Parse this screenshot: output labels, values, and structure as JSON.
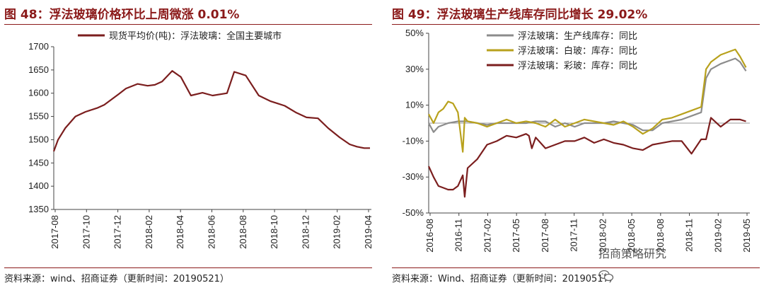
{
  "left": {
    "title": "图 48：浮法玻璃价格环比上周微涨 0.01%",
    "source": "资料来源：wind、招商证券（更新时间：20190521）"
  },
  "right": {
    "title": "图 49：浮法玻璃生产线库存同比增长 29.02%",
    "source": "资料来源：Wind、招商证券（更新时间：20190517）"
  },
  "watermark": {
    "text": "招商策略研究",
    "icon": "wechat-icon"
  },
  "chart_data": [
    {
      "type": "line",
      "title": "图 48：浮法玻璃价格环比上周微涨 0.01%",
      "xlabel": "",
      "ylabel": "",
      "ylim": [
        1350,
        1700
      ],
      "yticks": [
        "1350",
        "1400",
        "1450",
        "1500",
        "1550",
        "1600",
        "1650",
        "1700"
      ],
      "xticks": [
        "2017-08",
        "2017-10",
        "2017-12",
        "2018-02",
        "2018-04",
        "2018-06",
        "2018-08",
        "2018-10",
        "2018-12",
        "2019-02",
        "2019-04"
      ],
      "x_range": [
        0,
        22
      ],
      "grid": false,
      "legend": "top",
      "series": [
        {
          "name": "现货平均价(吨)：浮法玻璃：全国主要城市",
          "color": "#7b1e1e",
          "x": [
            0,
            0.3,
            0.8,
            1.5,
            2.2,
            3.0,
            3.5,
            4.5,
            5.0,
            5.8,
            6.5,
            7.0,
            7.5,
            8.2,
            8.8,
            9.5,
            10.3,
            11.0,
            12.0,
            12.5,
            13.3,
            14.2,
            15.0,
            15.5,
            16.0,
            16.8,
            17.5,
            18.3,
            19.0,
            19.8,
            20.5,
            21.0,
            21.5,
            21.9
          ],
          "y": [
            1475,
            1500,
            1525,
            1550,
            1560,
            1568,
            1575,
            1598,
            1610,
            1620,
            1616,
            1618,
            1625,
            1648,
            1635,
            1595,
            1601,
            1595,
            1600,
            1646,
            1638,
            1595,
            1583,
            1578,
            1573,
            1558,
            1548,
            1546,
            1525,
            1505,
            1490,
            1485,
            1482,
            1482
          ]
        }
      ]
    },
    {
      "type": "line",
      "title": "图 49：浮法玻璃生产线库存同比增长 29.02%",
      "xlabel": "",
      "ylabel": "",
      "ylim": [
        -50,
        50
      ],
      "yticks": [
        "-50%",
        "-30%",
        "-10%",
        "10%",
        "30%",
        "50%"
      ],
      "xticks": [
        "2016-08",
        "2016-11",
        "2017-02",
        "2017-05",
        "2017-08",
        "2017-11",
        "2018-02",
        "2018-05",
        "2018-08",
        "2018-11",
        "2019-02",
        "2019-05"
      ],
      "x_range": [
        0,
        33
      ],
      "grid": false,
      "legend": "top-left",
      "series": [
        {
          "name": "浮法玻璃：生产线库存：同比",
          "color": "#8c8c8c",
          "x": [
            0,
            0.5,
            1,
            2,
            3,
            4,
            5,
            6,
            7,
            8,
            9,
            10,
            11,
            12,
            13,
            14,
            15,
            16,
            17,
            18,
            19,
            20,
            21,
            22,
            23,
            24,
            25,
            26,
            27,
            28,
            28.5,
            29,
            30,
            31,
            31.5,
            32,
            32.6
          ],
          "y": [
            0,
            -5,
            -2,
            0,
            1,
            1,
            0,
            -1,
            0,
            0,
            0,
            0,
            1,
            1,
            -2,
            0,
            -2,
            0,
            0,
            0,
            1,
            0,
            -1,
            -4,
            -4,
            0,
            1,
            2,
            4,
            6,
            25,
            30,
            33,
            35,
            36,
            34,
            29
          ]
        },
        {
          "name": "浮法玻璃：白玻：库存：同比",
          "color": "#b8a11c",
          "x": [
            0,
            0.5,
            1,
            1.5,
            2,
            2.5,
            3,
            3.5,
            3.7,
            4,
            5,
            6,
            7,
            8,
            9,
            10,
            11,
            12,
            13,
            14,
            15,
            16,
            17,
            18,
            19,
            20,
            21,
            22,
            23,
            24,
            25,
            26,
            27,
            28,
            28.5,
            29,
            30,
            31,
            31.5,
            32,
            32.6
          ],
          "y": [
            5,
            0,
            6,
            8,
            12,
            11,
            6,
            -16,
            3,
            1,
            0,
            -2,
            0,
            2,
            0,
            1,
            0,
            -2,
            2,
            -2,
            0,
            2,
            1,
            0,
            -1,
            1,
            -2,
            -6,
            -3,
            2,
            3,
            5,
            7,
            9,
            30,
            34,
            38,
            40,
            41,
            37,
            31
          ]
        },
        {
          "name": "浮法玻璃：彩玻：库存：同比",
          "color": "#7b1e1e",
          "x": [
            0,
            0.5,
            1,
            1.5,
            2,
            2.5,
            3,
            3.5,
            3.7,
            4,
            5,
            6,
            7,
            8,
            9,
            10,
            10.3,
            10.6,
            11,
            12,
            13,
            14,
            15,
            16,
            17,
            18,
            19,
            20,
            21,
            22,
            23,
            24,
            25,
            26,
            27,
            28,
            28.5,
            29,
            30,
            31,
            32,
            32.6
          ],
          "y": [
            -24,
            -30,
            -35,
            -36,
            -37,
            -37,
            -35,
            -29,
            -41,
            -25,
            -20,
            -12,
            -10,
            -7,
            -8,
            -6,
            -7,
            -14,
            -8,
            -14,
            -12,
            -10,
            -10,
            -8,
            -11,
            -9,
            -11,
            -12,
            -14,
            -15,
            -12,
            -11,
            -10,
            -10,
            -17,
            -9,
            -9,
            3,
            -2,
            2,
            2,
            1
          ]
        }
      ]
    }
  ]
}
